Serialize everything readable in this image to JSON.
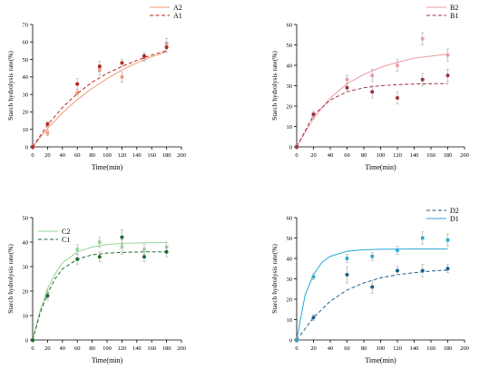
{
  "chart_data": [
    {
      "id": "A",
      "type": "scatter",
      "xlabel": "Time(min)",
      "ylabel": "Starch hydrolysis rate(%)",
      "xlim": [
        0,
        200
      ],
      "ylim": [
        0,
        70
      ],
      "xticks": [
        "0",
        "20",
        "40",
        "60",
        "80",
        "100",
        "120",
        "140",
        "160",
        "180",
        "200"
      ],
      "yticks": [
        "0",
        "10",
        "20",
        "30",
        "40",
        "50",
        "60",
        "70"
      ],
      "legend": "top-right",
      "grid": false,
      "series": [
        {
          "name": "A2",
          "color": "#f29a7a",
          "line": "solid",
          "x": [
            0,
            20,
            60,
            90,
            120,
            150,
            180
          ],
          "y": [
            0,
            8,
            31,
            44,
            40,
            51,
            59
          ],
          "err": [
            1,
            1.5,
            2,
            3,
            3,
            2,
            3
          ],
          "fit": [
            [
              0,
              0
            ],
            [
              20,
              10.5
            ],
            [
              40,
              19.5
            ],
            [
              60,
              27
            ],
            [
              80,
              33.5
            ],
            [
              100,
              39
            ],
            [
              120,
              44
            ],
            [
              140,
              48
            ],
            [
              160,
              51.5
            ],
            [
              180,
              54.5
            ]
          ]
        },
        {
          "name": "A1",
          "color": "#b8261f",
          "line": "dashed",
          "x": [
            0,
            20,
            60,
            90,
            120,
            150,
            180
          ],
          "y": [
            0,
            13,
            36,
            46,
            48,
            52,
            57
          ],
          "err": [
            1,
            1.5,
            3,
            3,
            2,
            2,
            3
          ],
          "fit": [
            [
              0,
              0
            ],
            [
              20,
              12.5
            ],
            [
              40,
              22.5
            ],
            [
              60,
              30.5
            ],
            [
              80,
              37
            ],
            [
              100,
              42
            ],
            [
              120,
              46
            ],
            [
              140,
              49.5
            ],
            [
              160,
              52.5
            ],
            [
              180,
              55
            ]
          ]
        }
      ]
    },
    {
      "id": "B",
      "type": "scatter",
      "xlabel": "Time(min)",
      "ylabel": "Starch hydrolysis rate(%)",
      "xlim": [
        0,
        200
      ],
      "ylim": [
        0,
        60
      ],
      "xticks": [
        "0",
        "20",
        "40",
        "60",
        "80",
        "100",
        "120",
        "140",
        "160",
        "180",
        "200"
      ],
      "yticks": [
        "0",
        "10",
        "20",
        "30",
        "40",
        "50",
        "60"
      ],
      "legend": "top-right",
      "grid": false,
      "series": [
        {
          "name": "B2",
          "color": "#f09aa5",
          "line": "solid",
          "x": [
            0,
            20,
            60,
            90,
            120,
            150,
            180
          ],
          "y": [
            0,
            15,
            33,
            35,
            40,
            53,
            45
          ],
          "err": [
            1,
            1.5,
            2,
            3,
            3,
            3,
            3
          ],
          "fit": [
            [
              0,
              0
            ],
            [
              20,
              14
            ],
            [
              40,
              24
            ],
            [
              60,
              31
            ],
            [
              80,
              35.5
            ],
            [
              100,
              39
            ],
            [
              120,
              41.5
            ],
            [
              140,
              43.5
            ],
            [
              160,
              44.5
            ],
            [
              180,
              45.5
            ]
          ]
        },
        {
          "name": "B1",
          "color": "#a0303c",
          "line": "dashed",
          "x": [
            0,
            20,
            60,
            90,
            120,
            150,
            180
          ],
          "y": [
            0,
            16,
            29,
            27,
            24,
            33,
            35
          ],
          "err": [
            1,
            1.5,
            2,
            3,
            3,
            3,
            3
          ],
          "fit": [
            [
              0,
              0
            ],
            [
              20,
              15.5
            ],
            [
              40,
              23
            ],
            [
              60,
              27
            ],
            [
              80,
              29
            ],
            [
              100,
              30
            ],
            [
              120,
              30.5
            ],
            [
              140,
              30.8
            ],
            [
              160,
              31
            ],
            [
              180,
              31
            ]
          ]
        }
      ]
    },
    {
      "id": "C",
      "type": "scatter",
      "xlabel": "Time(min)",
      "ylabel": "Starch hydrolysis rate(%)",
      "xlim": [
        0,
        200
      ],
      "ylim": [
        0,
        50
      ],
      "xticks": [
        "0",
        "20",
        "40",
        "60",
        "80",
        "100",
        "120",
        "140",
        "160",
        "180",
        "200"
      ],
      "yticks": [
        "0",
        "10",
        "20",
        "30",
        "40",
        "50"
      ],
      "legend": "top-left",
      "grid": false,
      "series": [
        {
          "name": "C2",
          "color": "#9ad39a",
          "line": "solid",
          "x": [
            0,
            20,
            60,
            90,
            120,
            150,
            180
          ],
          "y": [
            0,
            19,
            37,
            40,
            38,
            37,
            38
          ],
          "err": [
            1,
            1.5,
            2,
            2,
            3,
            2,
            2
          ],
          "fit": [
            [
              0,
              0
            ],
            [
              10,
              12
            ],
            [
              20,
              21
            ],
            [
              30,
              27
            ],
            [
              40,
              31.5
            ],
            [
              60,
              36
            ],
            [
              80,
              38
            ],
            [
              100,
              39
            ],
            [
              120,
              39.5
            ],
            [
              150,
              39.7
            ],
            [
              180,
              39.8
            ]
          ]
        },
        {
          "name": "C1",
          "color": "#1e6b2f",
          "line": "dashed",
          "x": [
            0,
            20,
            60,
            90,
            120,
            150,
            180
          ],
          "y": [
            0,
            18,
            33,
            34,
            42,
            34,
            36
          ],
          "err": [
            1,
            1.5,
            2,
            2,
            3,
            2,
            2
          ],
          "fit": [
            [
              0,
              0
            ],
            [
              10,
              11
            ],
            [
              20,
              19
            ],
            [
              30,
              25
            ],
            [
              40,
              29
            ],
            [
              60,
              33
            ],
            [
              80,
              34.8
            ],
            [
              100,
              35.5
            ],
            [
              120,
              35.8
            ],
            [
              150,
              36
            ],
            [
              180,
              36
            ]
          ]
        }
      ]
    },
    {
      "id": "D",
      "type": "scatter",
      "xlabel": "Time(min)",
      "ylabel": "Starch hydrolysis rate(%)",
      "xlim": [
        0,
        200
      ],
      "ylim": [
        0,
        60
      ],
      "xticks": [
        "0",
        "20",
        "40",
        "60",
        "80",
        "100",
        "120",
        "140",
        "160",
        "180",
        "200"
      ],
      "yticks": [
        "0",
        "10",
        "20",
        "30",
        "40",
        "50",
        "60"
      ],
      "legend": "top-right",
      "grid": false,
      "series": [
        {
          "name": "D2",
          "color": "#1a5f8a",
          "line": "dashed",
          "x": [
            0,
            20,
            60,
            90,
            120,
            150,
            180
          ],
          "y": [
            0,
            11,
            32,
            26,
            34,
            34,
            35
          ],
          "err": [
            1,
            1.5,
            4,
            3,
            2,
            3,
            2
          ],
          "fit": [
            [
              0,
              0
            ],
            [
              20,
              11
            ],
            [
              40,
              19
            ],
            [
              60,
              24.5
            ],
            [
              80,
              28
            ],
            [
              100,
              30.5
            ],
            [
              120,
              32
            ],
            [
              140,
              33
            ],
            [
              160,
              33.8
            ],
            [
              180,
              34.3
            ]
          ]
        },
        {
          "name": "D1",
          "color": "#29a8d4",
          "line": "solid",
          "x": [
            0,
            20,
            60,
            90,
            120,
            150,
            180
          ],
          "y": [
            0,
            31,
            40,
            41,
            44,
            50,
            49
          ],
          "err": [
            1,
            1.5,
            2,
            2,
            2,
            3,
            3
          ],
          "fit": [
            [
              0,
              0
            ],
            [
              10,
              22
            ],
            [
              20,
              32
            ],
            [
              30,
              38
            ],
            [
              40,
              41
            ],
            [
              60,
              43.5
            ],
            [
              80,
              44.2
            ],
            [
              100,
              44.5
            ],
            [
              140,
              44.6
            ],
            [
              180,
              44.6
            ]
          ]
        }
      ]
    }
  ]
}
